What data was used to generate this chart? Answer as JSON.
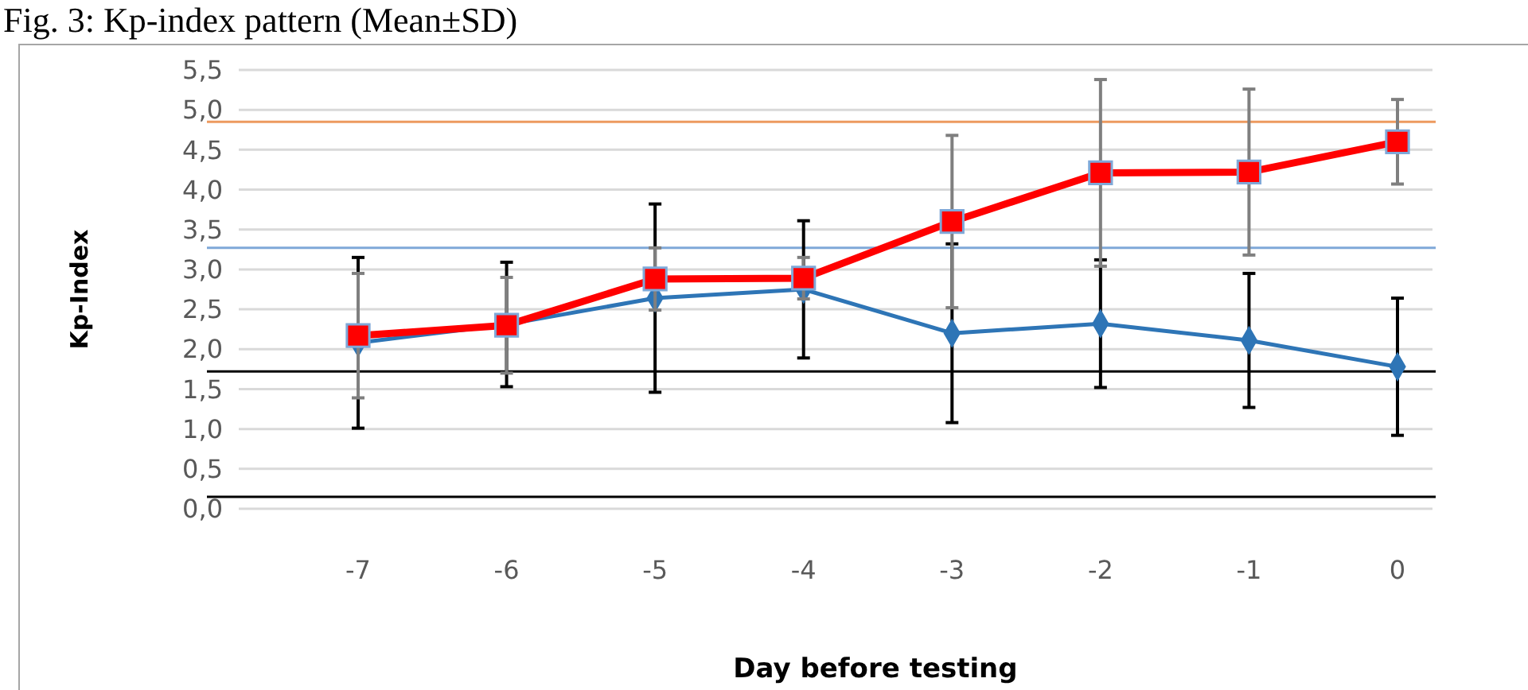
{
  "chart_data": {
    "type": "line",
    "title": "Fig. 3: Kp-index pattern (Mean±SD)",
    "xlabel": "Day before testing",
    "ylabel": "Kp-Index",
    "categories": [
      "-7",
      "-6",
      "-5",
      "-4",
      "-3",
      "-2",
      "-1",
      "0"
    ],
    "series": [
      {
        "color": "#2e75b6",
        "marker": "diamond",
        "values": [
          2.08,
          2.31,
          2.64,
          2.75,
          2.2,
          2.32,
          2.11,
          1.78
        ],
        "errors": [
          1.07,
          0.78,
          1.18,
          0.86,
          1.12,
          0.8,
          0.84,
          0.86
        ]
      },
      {
        "color": "#ff0000",
        "marker": "square",
        "values": [
          2.17,
          2.3,
          2.88,
          2.89,
          3.6,
          4.21,
          4.22,
          4.6
        ],
        "errors": [
          0.78,
          0.6,
          0.39,
          0.26,
          1.08,
          1.17,
          1.04,
          0.53
        ]
      }
    ],
    "ylim": [
      0,
      5.5
    ],
    "yticks": [
      {
        "value": 0,
        "label": "0,0"
      },
      {
        "value": 0.5,
        "label": "0,5"
      },
      {
        "value": 1,
        "label": "1,0"
      },
      {
        "value": 1.5,
        "label": "1,5"
      },
      {
        "value": 2,
        "label": "2,0"
      },
      {
        "value": 2.5,
        "label": "2,5"
      },
      {
        "value": 3,
        "label": "3,0"
      },
      {
        "value": 3.5,
        "label": "3,5"
      },
      {
        "value": 4,
        "label": "4,0"
      },
      {
        "value": 4.5,
        "label": "4,5"
      },
      {
        "value": 5,
        "label": "5,0"
      },
      {
        "value": 5.5,
        "label": "5,5"
      }
    ],
    "ref_lines": [
      {
        "axis": "y",
        "value": 4.85,
        "color": "#ed9a5f"
      },
      {
        "axis": "y",
        "value": 3.27,
        "color": "#7fa8d8"
      },
      {
        "axis": "y",
        "value": 1.72,
        "color": "#000000"
      },
      {
        "axis": "y",
        "value": 0.15,
        "color": "#000000"
      }
    ],
    "grid": "y",
    "line_style": "solid"
  }
}
